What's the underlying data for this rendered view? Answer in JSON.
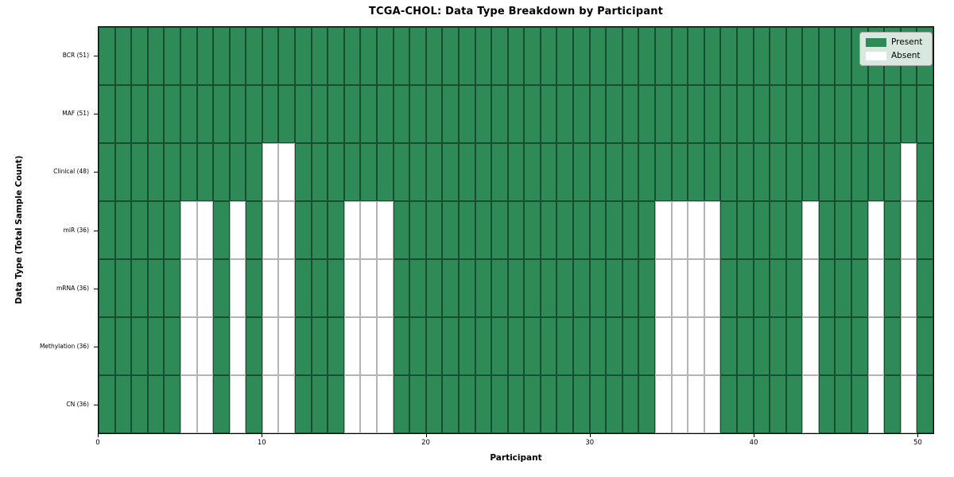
{
  "title": "TCGA-CHOL: Data Type Breakdown by Participant",
  "legend": {
    "items": [
      {
        "label": "Present",
        "color_key": "present"
      },
      {
        "label": "Absent",
        "color_key": "absent"
      }
    ]
  },
  "chart_data": {
    "type": "heatmap",
    "title": "TCGA-CHOL: Data Type Breakdown by Participant",
    "xlabel": "Participant",
    "ylabel": "Data Type (Total Sample Count)",
    "n_participants": 51,
    "x_range": [
      0,
      51
    ],
    "x_ticks": [
      0,
      10,
      20,
      30,
      40,
      50
    ],
    "x_tick_labels": [
      "0",
      "10",
      "20",
      "30",
      "40",
      "50"
    ],
    "legend_entries": [
      "Present",
      "Absent"
    ],
    "legend_position": "upper right",
    "grid": true,
    "colors": {
      "present": "#2e8b57",
      "absent": "#ffffff"
    },
    "rows": [
      {
        "label": "BCR (51)",
        "data_type": "BCR",
        "total_present": 51,
        "absent_participants": []
      },
      {
        "label": "MAF (51)",
        "data_type": "MAF",
        "total_present": 51,
        "absent_participants": []
      },
      {
        "label": "Clinical (48)",
        "data_type": "Clinical",
        "total_present": 48,
        "absent_participants": [
          10,
          11,
          49
        ]
      },
      {
        "label": "miR (36)",
        "data_type": "miR",
        "total_present": 36,
        "absent_participants": [
          5,
          6,
          8,
          10,
          11,
          15,
          16,
          17,
          34,
          35,
          36,
          37,
          43,
          47,
          49
        ]
      },
      {
        "label": "mRNA (36)",
        "data_type": "mRNA",
        "total_present": 36,
        "absent_participants": [
          5,
          6,
          8,
          10,
          11,
          15,
          16,
          17,
          34,
          35,
          36,
          37,
          43,
          47,
          49
        ]
      },
      {
        "label": "Methylation (36)",
        "data_type": "Methylation",
        "total_present": 36,
        "absent_participants": [
          5,
          6,
          8,
          10,
          11,
          15,
          16,
          17,
          34,
          35,
          36,
          37,
          43,
          47,
          49
        ]
      },
      {
        "label": "CN (36)",
        "data_type": "CN",
        "total_present": 36,
        "absent_participants": [
          5,
          6,
          8,
          10,
          11,
          15,
          16,
          17,
          34,
          35,
          36,
          37,
          43,
          47,
          49
        ]
      }
    ]
  }
}
